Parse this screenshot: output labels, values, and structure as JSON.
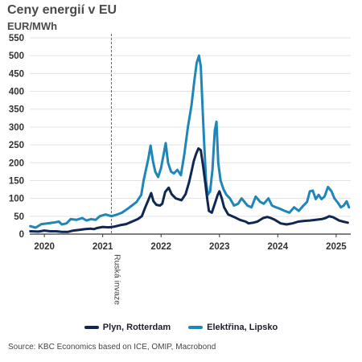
{
  "chart_data": {
    "type": "line",
    "title": "Ceny energií v EU",
    "ylabel": "EUR/MWh",
    "ylim": [
      0,
      550
    ],
    "yticks": [
      0,
      50,
      100,
      150,
      200,
      250,
      300,
      350,
      400,
      450,
      500,
      550
    ],
    "xlim": [
      2019.75,
      2025.25
    ],
    "xticks": [
      {
        "label": "2020",
        "value": 2020.0
      },
      {
        "label": "2021",
        "value": 2021.0
      },
      {
        "label": "2022",
        "value": 2022.0
      },
      {
        "label": "2023",
        "value": 2023.0
      },
      {
        "label": "2024",
        "value": 2024.0
      },
      {
        "label": "2025",
        "value": 2025.0
      }
    ],
    "grid": true,
    "annotation": {
      "label": "Ruská invaze",
      "x": 2021.15
    },
    "legend_position": "bottom",
    "series": [
      {
        "name": "Plyn, Rotterdam",
        "color": "#0f2752",
        "points": [
          [
            2019.76,
            8
          ],
          [
            2019.9,
            7
          ],
          [
            2020.0,
            10
          ],
          [
            2020.1,
            8
          ],
          [
            2020.2,
            8
          ],
          [
            2020.3,
            6
          ],
          [
            2020.4,
            6
          ],
          [
            2020.5,
            10
          ],
          [
            2020.6,
            12
          ],
          [
            2020.7,
            14
          ],
          [
            2020.8,
            15
          ],
          [
            2020.85,
            14
          ],
          [
            2020.9,
            17
          ],
          [
            2021.0,
            20
          ],
          [
            2021.1,
            19
          ],
          [
            2021.2,
            21
          ],
          [
            2021.3,
            25
          ],
          [
            2021.4,
            28
          ],
          [
            2021.5,
            35
          ],
          [
            2021.6,
            42
          ],
          [
            2021.67,
            50
          ],
          [
            2021.73,
            75
          ],
          [
            2021.78,
            95
          ],
          [
            2021.83,
            115
          ],
          [
            2021.87,
            92
          ],
          [
            2021.92,
            82
          ],
          [
            2021.98,
            80
          ],
          [
            2022.02,
            85
          ],
          [
            2022.07,
            118
          ],
          [
            2022.13,
            130
          ],
          [
            2022.18,
            112
          ],
          [
            2022.25,
            100
          ],
          [
            2022.35,
            95
          ],
          [
            2022.42,
            112
          ],
          [
            2022.48,
            145
          ],
          [
            2022.52,
            175
          ],
          [
            2022.56,
            205
          ],
          [
            2022.6,
            225
          ],
          [
            2022.64,
            240
          ],
          [
            2022.68,
            235
          ],
          [
            2022.72,
            190
          ],
          [
            2022.76,
            140
          ],
          [
            2022.79,
            100
          ],
          [
            2022.82,
            65
          ],
          [
            2022.87,
            60
          ],
          [
            2022.92,
            85
          ],
          [
            2022.97,
            110
          ],
          [
            2023.0,
            120
          ],
          [
            2023.04,
            100
          ],
          [
            2023.08,
            75
          ],
          [
            2023.15,
            55
          ],
          [
            2023.25,
            48
          ],
          [
            2023.35,
            40
          ],
          [
            2023.45,
            35
          ],
          [
            2023.5,
            30
          ],
          [
            2023.58,
            32
          ],
          [
            2023.65,
            35
          ],
          [
            2023.75,
            45
          ],
          [
            2023.82,
            48
          ],
          [
            2023.88,
            45
          ],
          [
            2023.95,
            40
          ],
          [
            2024.05,
            30
          ],
          [
            2024.15,
            27
          ],
          [
            2024.25,
            30
          ],
          [
            2024.35,
            35
          ],
          [
            2024.45,
            37
          ],
          [
            2024.55,
            38
          ],
          [
            2024.65,
            40
          ],
          [
            2024.75,
            42
          ],
          [
            2024.82,
            45
          ],
          [
            2024.88,
            50
          ],
          [
            2024.95,
            47
          ],
          [
            2025.05,
            38
          ],
          [
            2025.12,
            35
          ],
          [
            2025.2,
            32
          ]
        ]
      },
      {
        "name": "Elektřina, Lipsko",
        "color": "#1f86b8",
        "points": [
          [
            2019.76,
            22
          ],
          [
            2019.85,
            18
          ],
          [
            2019.95,
            28
          ],
          [
            2020.05,
            30
          ],
          [
            2020.15,
            32
          ],
          [
            2020.25,
            35
          ],
          [
            2020.3,
            27
          ],
          [
            2020.38,
            30
          ],
          [
            2020.45,
            42
          ],
          [
            2020.55,
            40
          ],
          [
            2020.65,
            45
          ],
          [
            2020.72,
            38
          ],
          [
            2020.8,
            42
          ],
          [
            2020.88,
            40
          ],
          [
            2020.95,
            50
          ],
          [
            2021.05,
            55
          ],
          [
            2021.15,
            50
          ],
          [
            2021.25,
            55
          ],
          [
            2021.33,
            60
          ],
          [
            2021.42,
            70
          ],
          [
            2021.5,
            80
          ],
          [
            2021.58,
            90
          ],
          [
            2021.66,
            110
          ],
          [
            2021.7,
            150
          ],
          [
            2021.74,
            180
          ],
          [
            2021.78,
            210
          ],
          [
            2021.82,
            248
          ],
          [
            2021.86,
            205
          ],
          [
            2021.9,
            175
          ],
          [
            2021.95,
            160
          ],
          [
            2022.0,
            185
          ],
          [
            2022.04,
            220
          ],
          [
            2022.08,
            255
          ],
          [
            2022.12,
            200
          ],
          [
            2022.17,
            175
          ],
          [
            2022.22,
            170
          ],
          [
            2022.28,
            180
          ],
          [
            2022.34,
            165
          ],
          [
            2022.4,
            225
          ],
          [
            2022.46,
            300
          ],
          [
            2022.52,
            360
          ],
          [
            2022.57,
            430
          ],
          [
            2022.61,
            480
          ],
          [
            2022.65,
            500
          ],
          [
            2022.68,
            470
          ],
          [
            2022.71,
            360
          ],
          [
            2022.74,
            250
          ],
          [
            2022.77,
            150
          ],
          [
            2022.8,
            110
          ],
          [
            2022.84,
            120
          ],
          [
            2022.88,
            180
          ],
          [
            2022.92,
            290
          ],
          [
            2022.95,
            315
          ],
          [
            2022.98,
            200
          ],
          [
            2023.02,
            150
          ],
          [
            2023.07,
            125
          ],
          [
            2023.12,
            110
          ],
          [
            2023.18,
            100
          ],
          [
            2023.25,
            80
          ],
          [
            2023.32,
            85
          ],
          [
            2023.38,
            100
          ],
          [
            2023.43,
            90
          ],
          [
            2023.48,
            80
          ],
          [
            2023.55,
            75
          ],
          [
            2023.62,
            105
          ],
          [
            2023.7,
            90
          ],
          [
            2023.76,
            85
          ],
          [
            2023.84,
            100
          ],
          [
            2023.9,
            80
          ],
          [
            2023.97,
            75
          ],
          [
            2024.05,
            70
          ],
          [
            2024.12,
            65
          ],
          [
            2024.2,
            60
          ],
          [
            2024.28,
            75
          ],
          [
            2024.36,
            65
          ],
          [
            2024.44,
            80
          ],
          [
            2024.5,
            90
          ],
          [
            2024.55,
            120
          ],
          [
            2024.6,
            122
          ],
          [
            2024.65,
            98
          ],
          [
            2024.7,
            110
          ],
          [
            2024.75,
            98
          ],
          [
            2024.8,
            105
          ],
          [
            2024.86,
            132
          ],
          [
            2024.92,
            120
          ],
          [
            2024.97,
            100
          ],
          [
            2025.03,
            88
          ],
          [
            2025.08,
            75
          ],
          [
            2025.13,
            80
          ],
          [
            2025.18,
            92
          ],
          [
            2025.22,
            75
          ]
        ]
      }
    ]
  },
  "source_text": "Source: KBC Economics based on ICE, OMIP, Macrobond"
}
